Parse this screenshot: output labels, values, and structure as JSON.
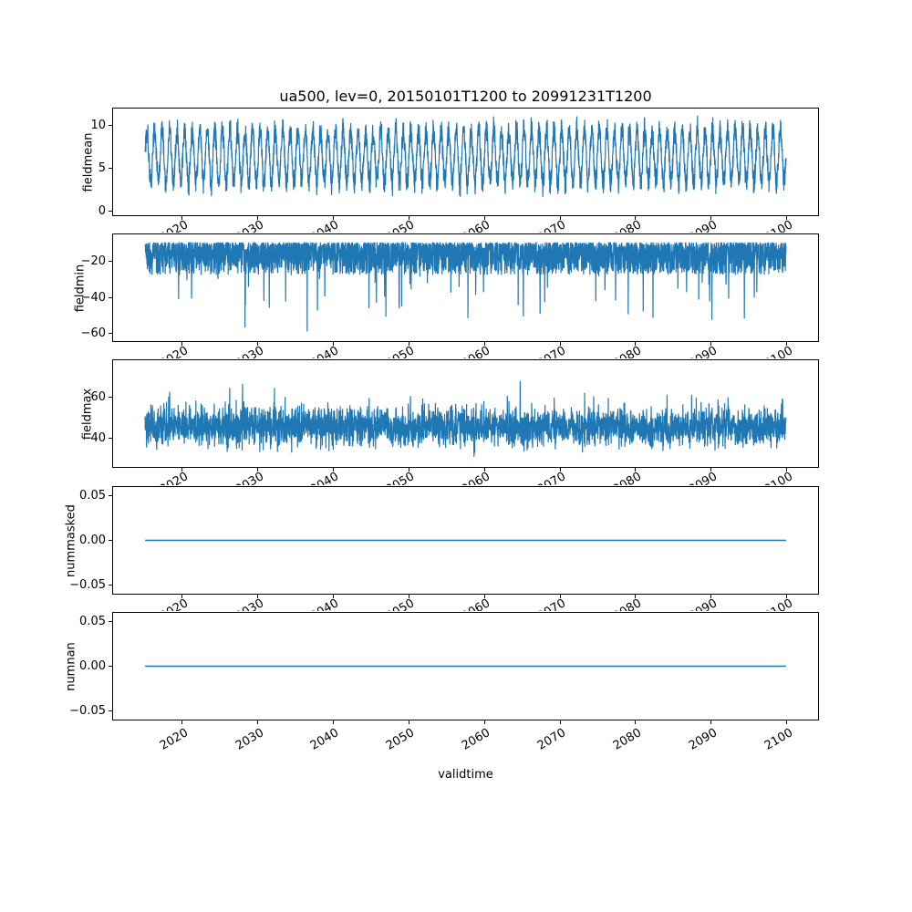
{
  "figure": {
    "title": "ua500, lev=0, 20150101T1200 to 20991231T1200",
    "xlabel": "validtime",
    "background": "#ffffff",
    "text_color": "#000000",
    "line_color": "#1f77b4",
    "xlim": [
      2010.75,
      2104.25
    ],
    "x_data_range": [
      2015.0,
      2100.0
    ],
    "xtick_values": [
      2020,
      2030,
      2040,
      2050,
      2060,
      2070,
      2080,
      2090,
      2100
    ],
    "xtick_labels": [
      "2020",
      "2030",
      "2040",
      "2050",
      "2060",
      "2070",
      "2080",
      "2090",
      "2100"
    ]
  },
  "chart_data": [
    {
      "type": "line",
      "name": "fieldmean",
      "ylabel": "fieldmean",
      "ylim": [
        -0.58,
        12.08
      ],
      "ytick_values": [
        0,
        5,
        10
      ],
      "ytick_labels": [
        "0",
        "5",
        "10"
      ],
      "x_years": [
        2015,
        2100
      ],
      "series": [
        {
          "name": "fieldmean",
          "color": "#1f77b4",
          "kind": "seasonal",
          "seed": 101,
          "points": 3600,
          "base": 6.4,
          "amplitude": 3.1,
          "cycles": 85,
          "noise": 1.15,
          "clamp": [
            0.4,
            11.6
          ]
        }
      ]
    },
    {
      "type": "line",
      "name": "fieldmin",
      "ylabel": "fieldmin",
      "ylim": [
        -64.75,
        -4.25
      ],
      "ytick_values": [
        -20,
        -40,
        -60
      ],
      "ytick_labels": [
        "−20",
        "−40",
        "−60"
      ],
      "x_years": [
        2015,
        2100
      ],
      "series": [
        {
          "name": "fieldmin",
          "color": "#1f77b4",
          "kind": "spiky_min",
          "seed": 202,
          "points": 3600,
          "base": 9,
          "band": 18,
          "band_pow": 1.6,
          "spike_prob": 0.02,
          "spike_depth": 34,
          "clamp": [
            -61.5,
            -7.5
          ]
        }
      ]
    },
    {
      "type": "line",
      "name": "fieldmax",
      "ylabel": "fieldmax",
      "ylim": [
        25.6,
        78.4
      ],
      "ytick_values": [
        60,
        40
      ],
      "ytick_labels": [
        "60",
        "40"
      ],
      "x_years": [
        2015,
        2100
      ],
      "series": [
        {
          "name": "fieldmax",
          "color": "#1f77b4",
          "kind": "noisy",
          "seed": 303,
          "points": 3600,
          "base": 45.5,
          "spread": 9,
          "spike_prob": 0.03,
          "spike": 14,
          "dip_prob": 0.02,
          "dip": 7,
          "clamp": [
            28.5,
            76.5
          ]
        }
      ]
    },
    {
      "type": "line",
      "name": "nummasked",
      "ylabel": "nummasked",
      "ylim": [
        -0.0605,
        0.0605
      ],
      "ytick_values": [
        0.05,
        0,
        -0.05
      ],
      "ytick_labels": [
        "0.05",
        "0.00",
        "−0.05"
      ],
      "x_years": [
        2015,
        2100
      ],
      "series": [
        {
          "name": "nummasked",
          "color": "#1f77b4",
          "kind": "constant",
          "value": 0,
          "points": 2
        }
      ]
    },
    {
      "type": "line",
      "name": "numnan",
      "ylabel": "numnan",
      "ylim": [
        -0.0605,
        0.0605
      ],
      "ytick_values": [
        0.05,
        0,
        -0.05
      ],
      "ytick_labels": [
        "0.05",
        "0.00",
        "−0.05"
      ],
      "x_years": [
        2015,
        2100
      ],
      "series": [
        {
          "name": "numnan",
          "color": "#1f77b4",
          "kind": "constant",
          "value": 0,
          "points": 2
        }
      ]
    }
  ]
}
